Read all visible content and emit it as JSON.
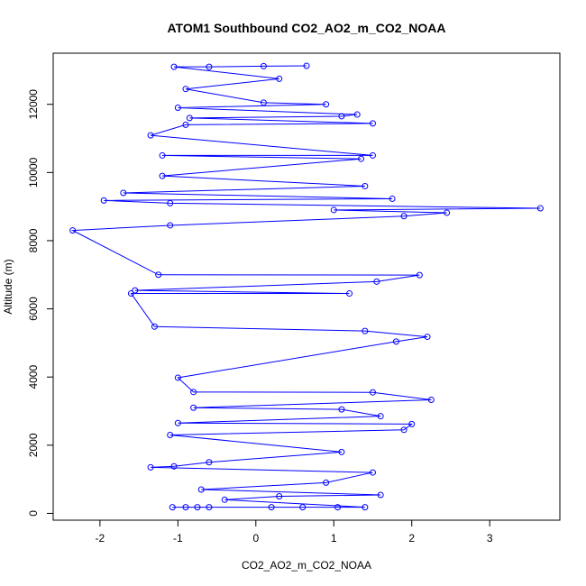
{
  "chart_data": {
    "type": "scatter",
    "title": "ATOM1 Southbound CO2_AO2_m_CO2_NOAA",
    "xlabel": "CO2_AO2_m_CO2_NOAA",
    "ylabel": "Altitude (m)",
    "xlim": [
      -2.6,
      3.9
    ],
    "ylim": [
      -200,
      13500
    ],
    "x_ticks": [
      -2,
      -1,
      0,
      1,
      2,
      3
    ],
    "y_ticks": [
      0,
      2000,
      4000,
      6000,
      8000,
      10000,
      12000
    ],
    "x_tick_labels": [
      "-2",
      "-1",
      "0",
      "1",
      "2",
      "3"
    ],
    "y_tick_labels": [
      "0",
      "2000",
      "4000",
      "6000",
      "8000",
      "10000",
      "12000"
    ],
    "grid": false,
    "legend": false,
    "marker": "open-circle",
    "connect_points": true,
    "series_color": "#0000ff",
    "points": [
      [
        -1.07,
        180
      ],
      [
        -0.9,
        180
      ],
      [
        -0.75,
        180
      ],
      [
        -0.6,
        180
      ],
      [
        0.2,
        180
      ],
      [
        0.6,
        180
      ],
      [
        1.05,
        180
      ],
      [
        1.4,
        180
      ],
      [
        -0.4,
        400
      ],
      [
        0.3,
        500
      ],
      [
        1.6,
        540
      ],
      [
        -0.7,
        700
      ],
      [
        0.9,
        900
      ],
      [
        -1.35,
        1350
      ],
      [
        -1.05,
        1380
      ],
      [
        1.5,
        1200
      ],
      [
        -0.6,
        1500
      ],
      [
        1.1,
        1800
      ],
      [
        -1.1,
        2300
      ],
      [
        1.9,
        2450
      ],
      [
        2.0,
        2620
      ],
      [
        -1.0,
        2650
      ],
      [
        1.6,
        2850
      ],
      [
        1.1,
        3050
      ],
      [
        2.25,
        3330
      ],
      [
        -0.8,
        3100
      ],
      [
        1.5,
        3550
      ],
      [
        -1.0,
        3980
      ],
      [
        -0.8,
        3560
      ],
      [
        1.8,
        5040
      ],
      [
        2.2,
        5180
      ],
      [
        -1.3,
        5480
      ],
      [
        1.4,
        5350
      ],
      [
        -1.6,
        6450
      ],
      [
        -1.55,
        6540
      ],
      [
        1.55,
        6800
      ],
      [
        2.1,
        6990
      ],
      [
        -1.25,
        7000
      ],
      [
        1.2,
        6450
      ],
      [
        -2.35,
        8300
      ],
      [
        -1.1,
        8450
      ],
      [
        1.9,
        8720
      ],
      [
        2.45,
        8820
      ],
      [
        3.65,
        8950
      ],
      [
        1.0,
        8900
      ],
      [
        -1.95,
        9180
      ],
      [
        -1.1,
        9100
      ],
      [
        1.75,
        9230
      ],
      [
        -1.7,
        9400
      ],
      [
        1.4,
        9600
      ],
      [
        -1.2,
        9900
      ],
      [
        -1.35,
        11090
      ],
      [
        -1.2,
        10500
      ],
      [
        1.35,
        10400
      ],
      [
        1.5,
        10500
      ],
      [
        -0.9,
        11400
      ],
      [
        1.5,
        11440
      ],
      [
        -0.85,
        11600
      ],
      [
        1.1,
        11650
      ],
      [
        -1.0,
        11900
      ],
      [
        1.3,
        11700
      ],
      [
        0.1,
        12050
      ],
      [
        0.9,
        12000
      ],
      [
        -0.9,
        12450
      ],
      [
        0.3,
        12750
      ],
      [
        -1.05,
        13100
      ],
      [
        -0.6,
        13100
      ],
      [
        0.1,
        13120
      ],
      [
        0.65,
        13130
      ]
    ]
  }
}
